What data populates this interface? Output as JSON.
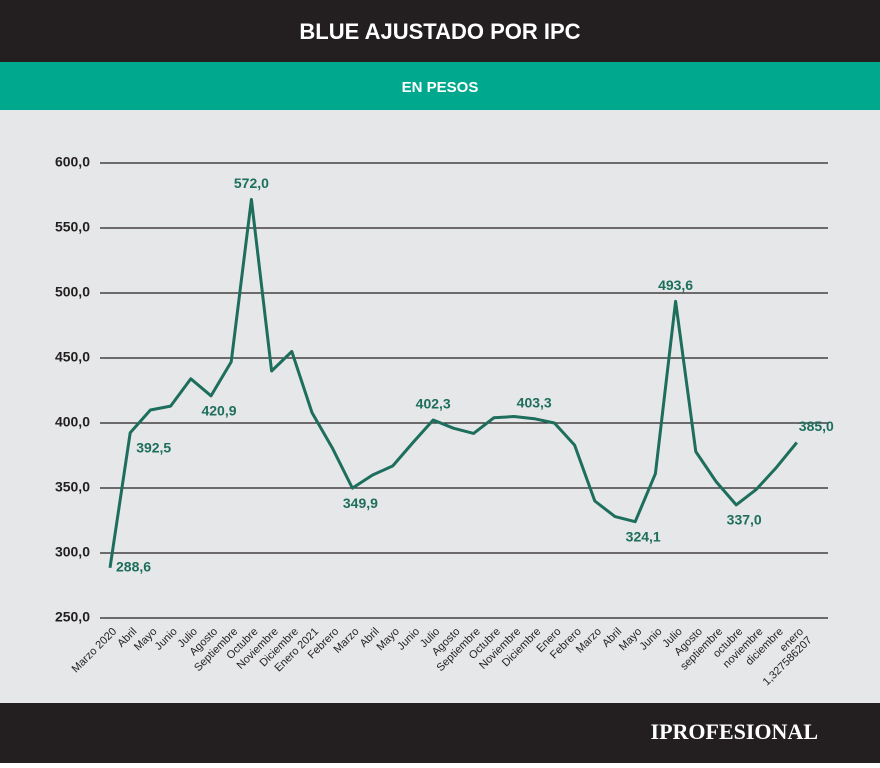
{
  "chart_data": {
    "type": "line",
    "title": "BLUE AJUSTADO POR IPC",
    "subtitle": "EN PESOS",
    "brand": "IPROFESIONAL",
    "categories": [
      "Marzo 2020",
      "Abril",
      "Mayo",
      "Junio",
      "Julio",
      "Agosto",
      "Septiembre",
      "Octubre",
      "Noviembre",
      "Diciembre",
      "Enero 2021",
      "Febrero",
      "Marzo",
      "Abril",
      "Mayo",
      "Junio",
      "Julio",
      "Agosto",
      "Septiembre",
      "Octubre",
      "Noviembre",
      "Diciembre",
      "Enero",
      "Febrero",
      "Marzo",
      "Abril",
      "Mayo",
      "Junio",
      "Julio",
      "Agosto",
      "septiembre",
      "octubre",
      "noviembre",
      "diciembre",
      "enero\n1,327586207"
    ],
    "series": [
      {
        "name": "Blue ajustado por IPC",
        "color": "#1d6e5c",
        "values": [
          288.6,
          392.5,
          410,
          413,
          434,
          420.9,
          447,
          572.0,
          440,
          455,
          408,
          381,
          349.9,
          360,
          367,
          385,
          402.3,
          396,
          392,
          404,
          405,
          403.3,
          400,
          383,
          340,
          328,
          324.1,
          361,
          493.6,
          378,
          355,
          337.0,
          349,
          366,
          385.0
        ],
        "value_labels": [
          "288,6",
          "392,5",
          null,
          null,
          null,
          "420,9",
          null,
          "572,0",
          null,
          null,
          null,
          null,
          "349,9",
          null,
          null,
          null,
          "402,3",
          null,
          null,
          null,
          null,
          "403,3",
          null,
          null,
          null,
          null,
          "324,1",
          null,
          "493,6",
          null,
          null,
          "337,0",
          null,
          null,
          "385,0"
        ]
      }
    ],
    "ylim": [
      250,
      600
    ],
    "yticks": [
      {
        "value": 250,
        "label": "250,0"
      },
      {
        "value": 300,
        "label": "300,0"
      },
      {
        "value": 350,
        "label": "350,0"
      },
      {
        "value": 400,
        "label": "400,0"
      },
      {
        "value": 450,
        "label": "450,0"
      },
      {
        "value": 500,
        "label": "500,0"
      },
      {
        "value": 550,
        "label": "550,0"
      },
      {
        "value": 600,
        "label": "600,0"
      }
    ],
    "grid": true
  }
}
